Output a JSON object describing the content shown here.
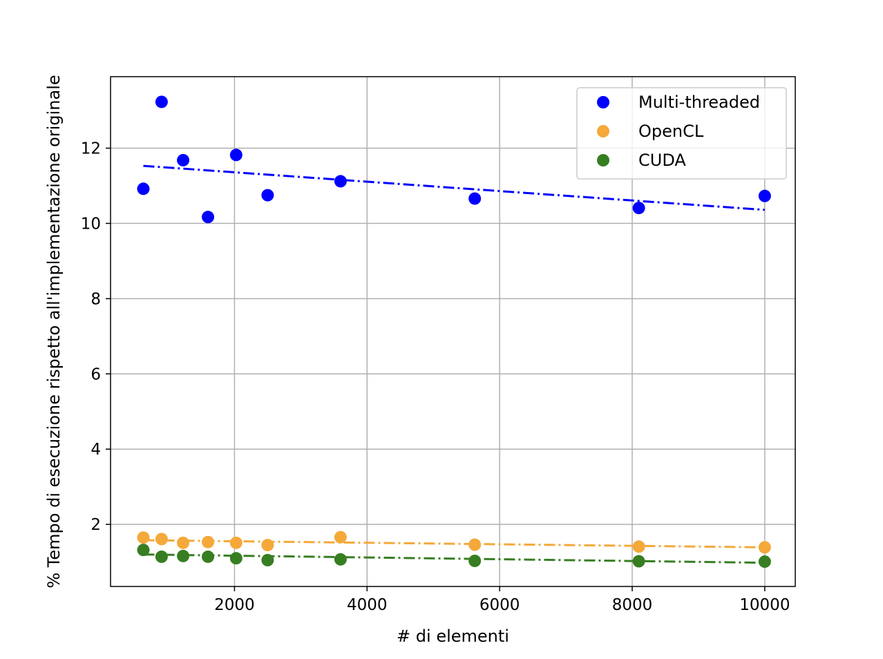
{
  "chart_data": {
    "type": "scatter",
    "title": "",
    "xlabel": "# di elementi",
    "ylabel": "% Tempo di esecuzione rispetto all'implementazione originale",
    "xlim": [
      130,
      10460
    ],
    "ylim": [
      0.35,
      13.9
    ],
    "xticks": [
      2000,
      4000,
      6000,
      8000,
      10000
    ],
    "yticks": [
      2,
      4,
      6,
      8,
      10,
      12
    ],
    "grid": true,
    "legend_position": "top-right",
    "series": [
      {
        "name": "Multi-threaded",
        "color": "#0000ff",
        "x": [
          625,
          900,
          1225,
          1600,
          2025,
          2500,
          3600,
          5625,
          8100,
          10000
        ],
        "y": [
          10.92,
          13.23,
          11.68,
          10.17,
          11.82,
          10.75,
          11.12,
          10.66,
          10.41,
          10.73
        ],
        "trend": {
          "x": [
            625,
            10000
          ],
          "y": [
            11.53,
            10.36
          ]
        }
      },
      {
        "name": "OpenCL",
        "color": "#f4a93a",
        "x": [
          625,
          900,
          1225,
          1600,
          2025,
          2500,
          3600,
          5625,
          8100,
          10000
        ],
        "y": [
          1.65,
          1.61,
          1.51,
          1.53,
          1.51,
          1.45,
          1.66,
          1.46,
          1.41,
          1.39
        ],
        "trend": {
          "x": [
            625,
            10000
          ],
          "y": [
            1.58,
            1.39
          ]
        }
      },
      {
        "name": "CUDA",
        "color": "#377e22",
        "x": [
          625,
          900,
          1225,
          1600,
          2025,
          2500,
          3600,
          5625,
          8100,
          10000
        ],
        "y": [
          1.32,
          1.14,
          1.16,
          1.14,
          1.1,
          1.05,
          1.07,
          1.03,
          1.02,
          1.01
        ],
        "trend": {
          "x": [
            625,
            10000
          ],
          "y": [
            1.2,
            0.98
          ]
        }
      }
    ]
  }
}
